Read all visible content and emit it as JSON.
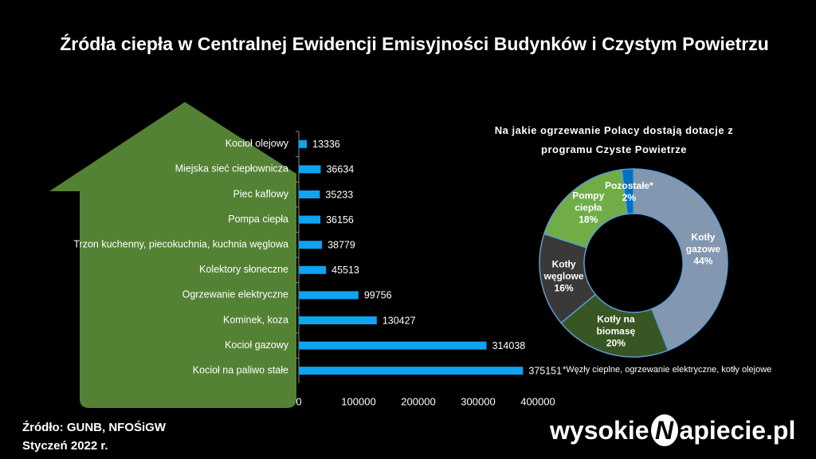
{
  "title": "Źródła ciepła w Centralnej Ewidencji Emisyjności Budynków i Czystym Powietrzu",
  "chart_data": [
    {
      "type": "bar",
      "orientation": "horizontal",
      "categories": [
        "Kocioł olejowy",
        "Miejska sieć ciepłownicza",
        "Piec kaflowy",
        "Pompa ciepła",
        "Trzon kuchenny, piecokuchnia, kuchnia węglowa",
        "Kolektory słoneczne",
        "Ogrzewanie elektryczne",
        "Kominek, koza",
        "Kocioł gazowy",
        "Kocioł na paliwo stałe"
      ],
      "values": [
        13336,
        36634,
        35233,
        36156,
        38779,
        45513,
        99756,
        130427,
        314038,
        375151
      ],
      "color": "#0fa3f0",
      "xlim": [
        0,
        400000
      ],
      "xticks": [
        0,
        100000,
        200000,
        300000,
        400000
      ]
    },
    {
      "type": "donut",
      "title": "Na jakie ogrzewanie Polacy dostają dotacje z programu Czyste Powietrze",
      "categories": [
        "Kotły gazowe",
        "Kotły na biomasę",
        "Kotły węglowe",
        "Pompy ciepła",
        "Pozostałe*"
      ],
      "values": [
        44,
        20,
        16,
        18,
        2
      ],
      "value_labels": [
        "44%",
        "20%",
        "16%",
        "18%",
        "2%"
      ],
      "colors": [
        "#8497b0",
        "#375623",
        "#3b3838",
        "#70ad47",
        "#0070c0"
      ],
      "footnote": "*Węzły cieplne, ogrzewanie elektryczne, kotły olejowe"
    }
  ],
  "source": "Źródło: GUNB, NFOŚiGW",
  "date": "Styczeń 2022 r.",
  "logo": {
    "left": "wysokie",
    "mark": "N",
    "right": "apiecie.pl"
  }
}
